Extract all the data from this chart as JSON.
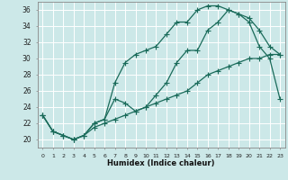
{
  "xlabel": "Humidex (Indice chaleur)",
  "bg_color": "#cce8e8",
  "grid_color": "#b0d4d4",
  "line_color": "#1a6b5a",
  "xlim": [
    -0.5,
    23.5
  ],
  "ylim": [
    19.0,
    37.0
  ],
  "xticks": [
    0,
    1,
    2,
    3,
    4,
    5,
    6,
    7,
    8,
    9,
    10,
    11,
    12,
    13,
    14,
    15,
    16,
    17,
    18,
    19,
    20,
    21,
    22,
    23
  ],
  "yticks": [
    20,
    22,
    24,
    26,
    28,
    30,
    32,
    34,
    36
  ],
  "line1_x": [
    0,
    1,
    2,
    3,
    4,
    5,
    6,
    7,
    8,
    9,
    10,
    11,
    12,
    13,
    14,
    15,
    16,
    17,
    18,
    19,
    20,
    21,
    22,
    23
  ],
  "line1_y": [
    23,
    21,
    20.5,
    20,
    20.5,
    22,
    22.5,
    27,
    29.5,
    30.5,
    31,
    31.5,
    33,
    34.5,
    34.5,
    36,
    36.5,
    36.5,
    36,
    35.5,
    35,
    33.5,
    31.5,
    30.5
  ],
  "line2_x": [
    0,
    1,
    2,
    3,
    4,
    5,
    6,
    7,
    8,
    9,
    10,
    11,
    12,
    13,
    14,
    15,
    16,
    17,
    18,
    19,
    20,
    21,
    22,
    23
  ],
  "line2_y": [
    23,
    21,
    20.5,
    20,
    20.5,
    22,
    22.5,
    25,
    24.5,
    23.5,
    24,
    25.5,
    27,
    29.5,
    31,
    31,
    33.5,
    34.5,
    36,
    35.5,
    34.5,
    31.5,
    30,
    25
  ],
  "line3_x": [
    0,
    1,
    2,
    3,
    4,
    5,
    6,
    7,
    8,
    9,
    10,
    11,
    12,
    13,
    14,
    15,
    16,
    17,
    18,
    19,
    20,
    21,
    22,
    23
  ],
  "line3_y": [
    23,
    21,
    20.5,
    20,
    20.5,
    21.5,
    22,
    22.5,
    23,
    23.5,
    24,
    24.5,
    25,
    25.5,
    26,
    27,
    28,
    28.5,
    29,
    29.5,
    30,
    30,
    30.5,
    30.5
  ]
}
